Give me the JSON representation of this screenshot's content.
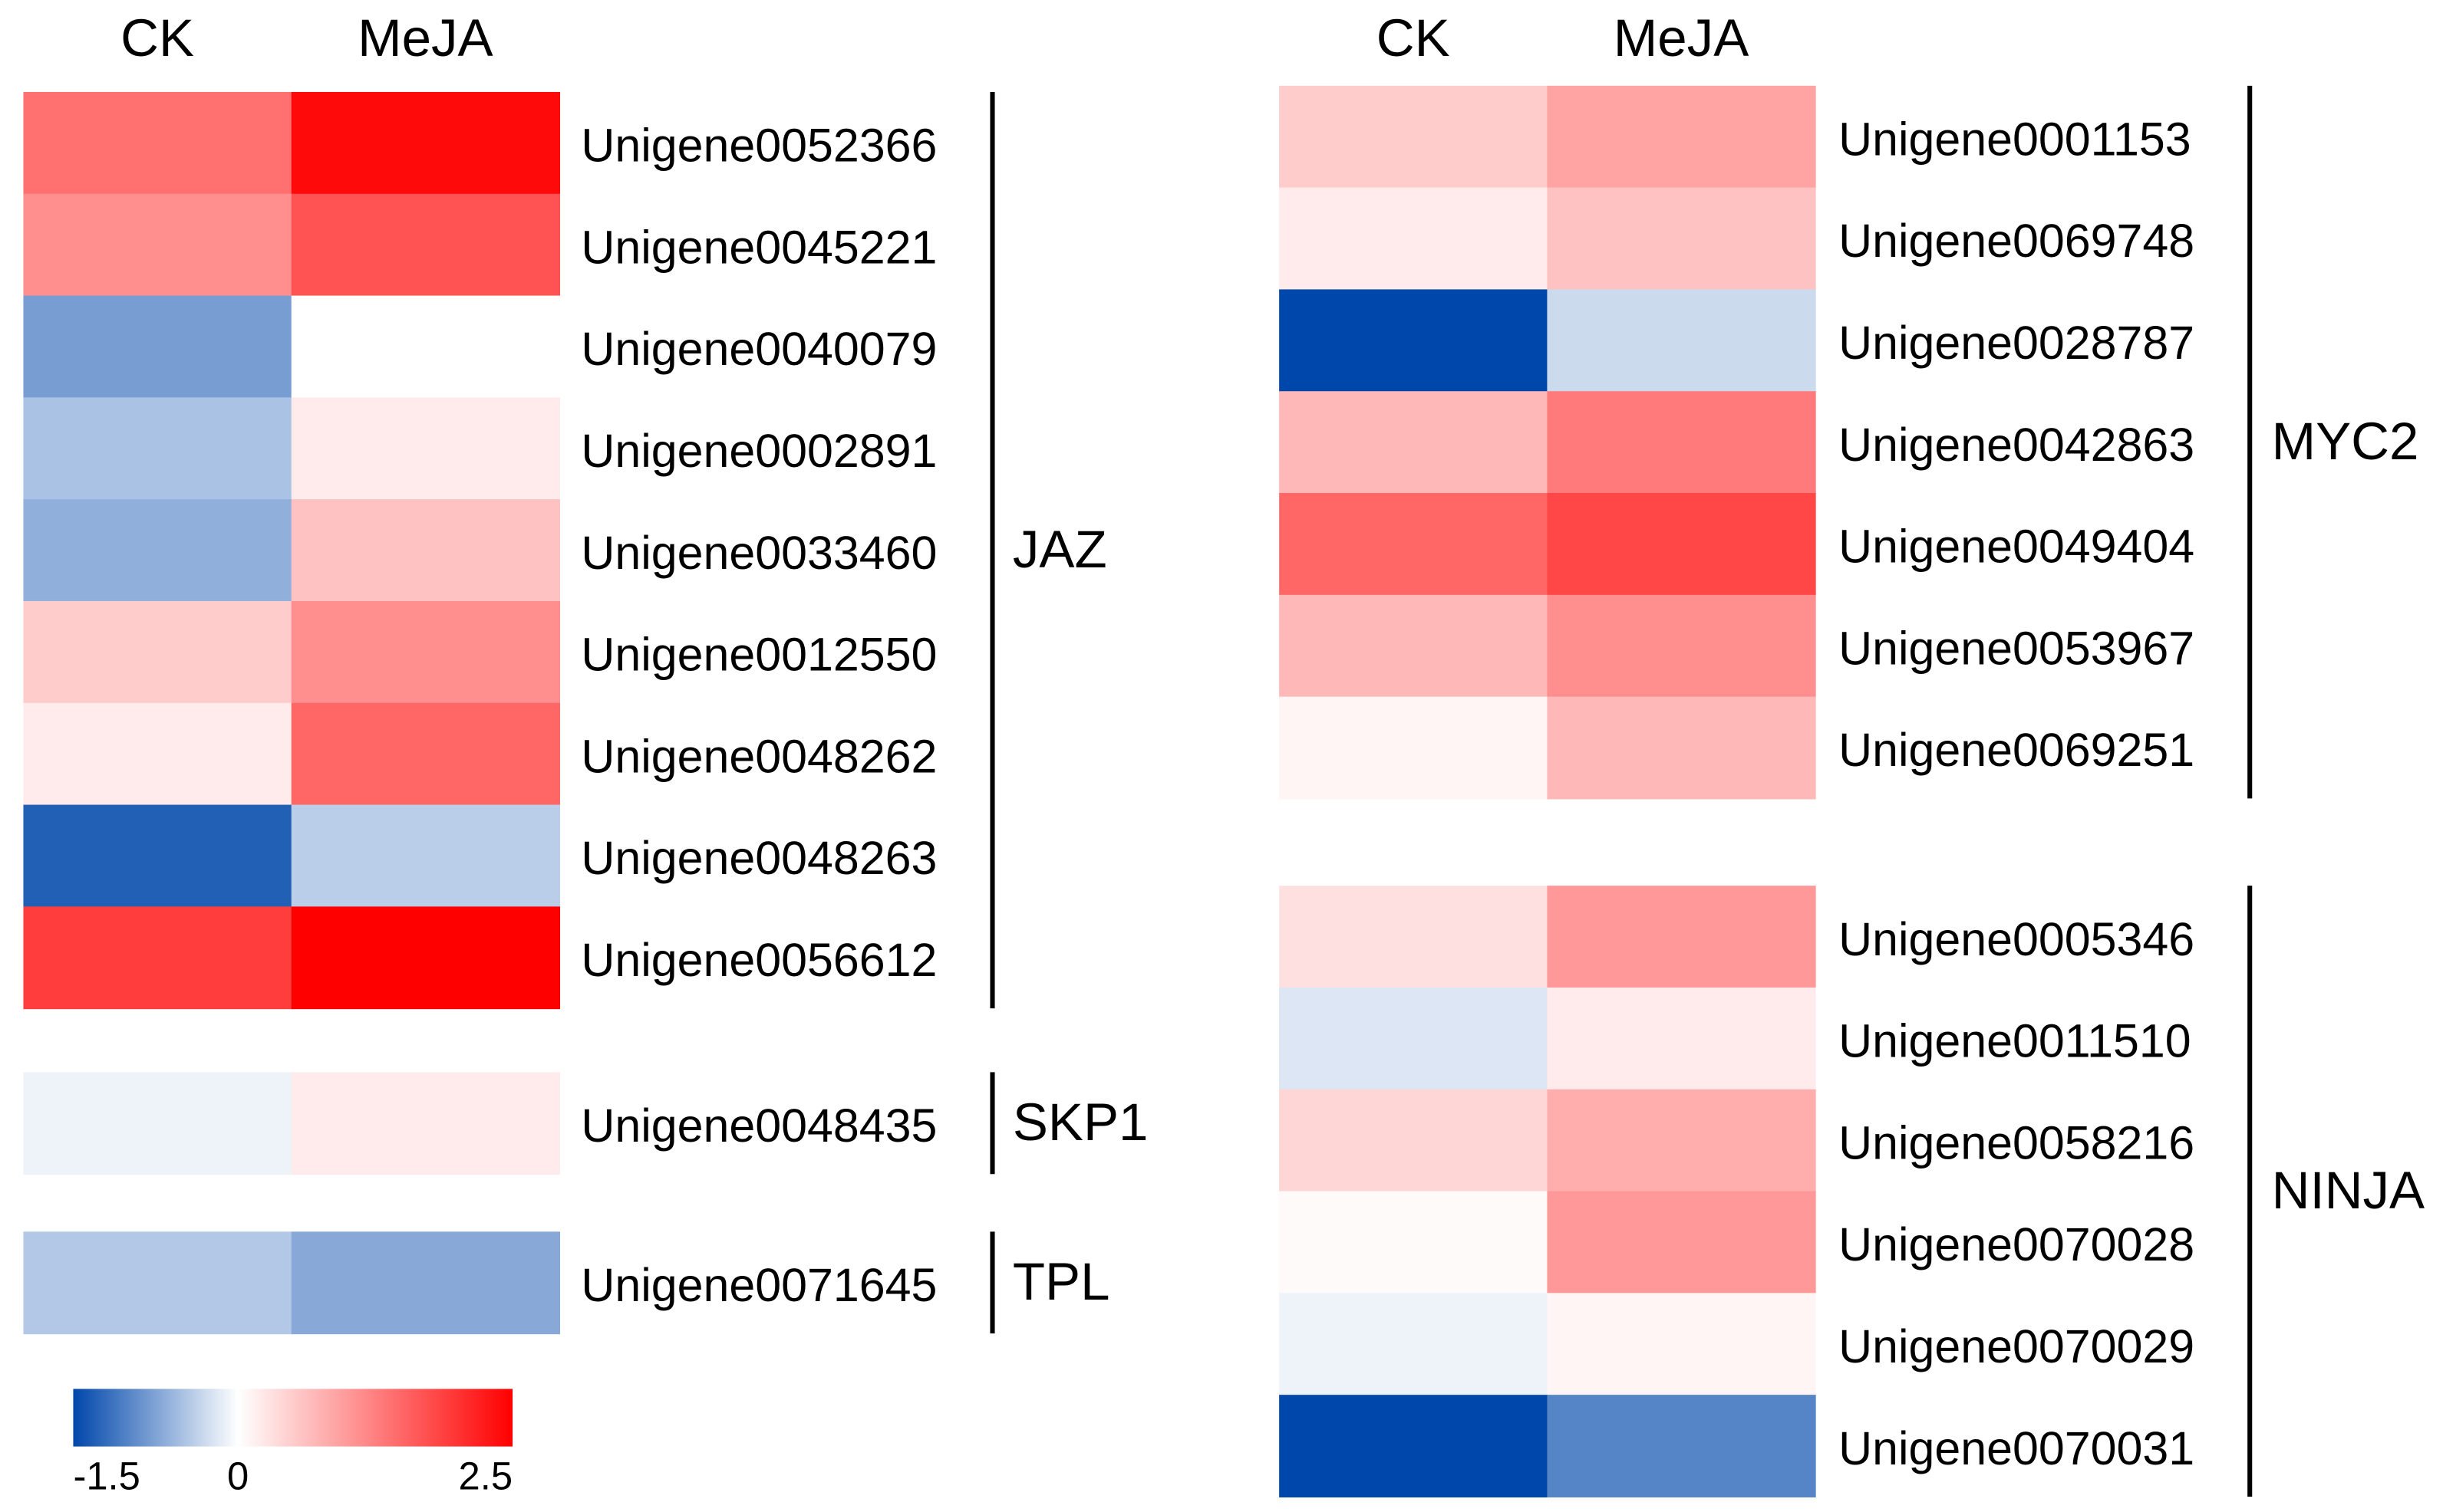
{
  "chart_data": {
    "type": "heatmap",
    "columns": [
      "CK",
      "MeJA"
    ],
    "colorscale": {
      "range": [
        -1.5,
        2.5
      ],
      "ticks": [
        -1.5,
        0,
        2.5
      ],
      "low": "#0047ab",
      "mid": "#ffffff",
      "high": "#ff0000"
    },
    "panels": [
      {
        "groups": [
          {
            "name": "JAZ",
            "rows": [
              "Unigene0052366",
              "Unigene0045221",
              "Unigene0040079",
              "Unigene0002891",
              "Unigene0033460",
              "Unigene0012550",
              "Unigene0048262",
              "Unigene0048263",
              "Unigene0056612"
            ],
            "values": [
              [
                1.4,
                2.4
              ],
              [
                1.1,
                1.7
              ],
              [
                -0.8,
                0
              ],
              [
                -0.5,
                0.2
              ],
              [
                -0.65,
                0.6
              ],
              [
                0.5,
                1.1
              ],
              [
                0.2,
                1.5
              ],
              [
                -1.3,
                -0.4
              ],
              [
                1.9,
                2.5
              ]
            ]
          },
          {
            "name": "SKP1",
            "rows": [
              "Unigene0048435"
            ],
            "values": [
              [
                -0.1,
                0.2
              ]
            ]
          },
          {
            "name": "TPL",
            "rows": [
              "Unigene0071645"
            ],
            "values": [
              [
                -0.45,
                -0.7
              ]
            ]
          }
        ]
      },
      {
        "groups": [
          {
            "name": "MYC2",
            "rows": [
              "Unigene0001153",
              "Unigene0069748",
              "Unigene0028787",
              "Unigene0042863",
              "Unigene0049404",
              "Unigene0053967",
              "Unigene0069251"
            ],
            "values": [
              [
                0.5,
                0.9
              ],
              [
                0.2,
                0.6
              ],
              [
                -1.5,
                -0.3
              ],
              [
                0.7,
                1.3
              ],
              [
                1.5,
                1.8
              ],
              [
                0.7,
                1.1
              ],
              [
                0.1,
                0.7
              ]
            ]
          },
          {
            "name": "NINJA",
            "rows": [
              "Unigene0005346",
              "Unigene0011510",
              "Unigene0058216",
              "Unigene0070028",
              "Unigene0070029",
              "Unigene0070031"
            ],
            "values": [
              [
                0.3,
                1.0
              ],
              [
                -0.2,
                0.2
              ],
              [
                0.4,
                0.8
              ],
              [
                0.05,
                1.0
              ],
              [
                -0.1,
                0.1
              ],
              [
                -1.5,
                -1.0
              ]
            ]
          }
        ]
      }
    ]
  }
}
